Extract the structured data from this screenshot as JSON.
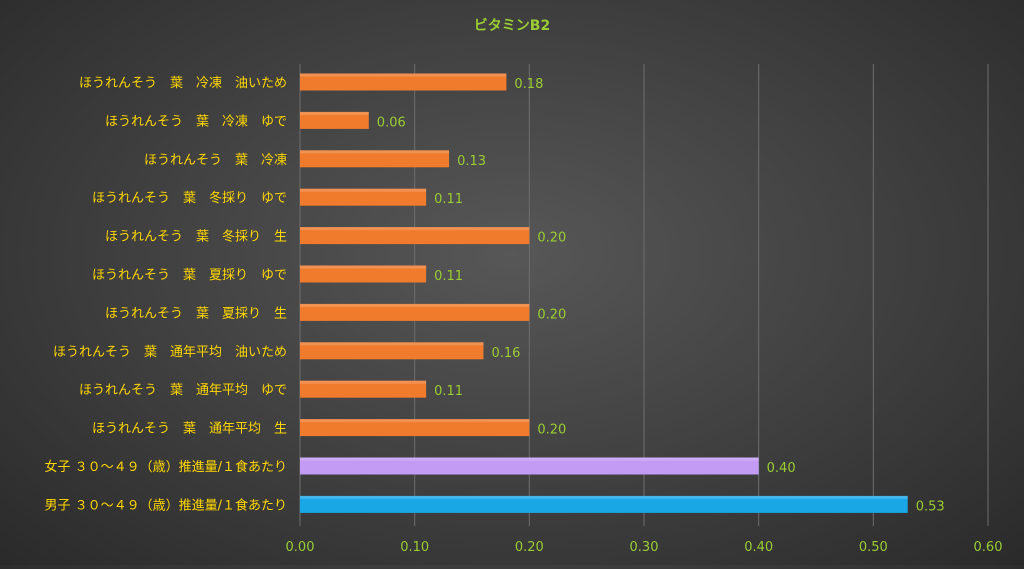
{
  "chart_data": {
    "type": "bar",
    "orientation": "horizontal",
    "title": "ビタミンB2",
    "xlabel": "",
    "ylabel": "",
    "xlim": [
      0,
      0.6
    ],
    "ticks": [
      "0.00",
      "0.10",
      "0.20",
      "0.30",
      "0.40",
      "0.50",
      "0.60"
    ],
    "grid": true,
    "categories": [
      "ほうれんそう　葉　冷凍　油いため",
      "ほうれんそう　葉　冷凍　ゆで",
      "ほうれんそう　葉　冷凍",
      "ほうれんそう　葉　冬採り　ゆで",
      "ほうれんそう　葉　冬採り　生",
      "ほうれんそう　葉　夏採り　ゆで",
      "ほうれんそう　葉　夏採り　生",
      "ほうれんそう　葉　通年平均　油いため",
      "ほうれんそう　葉　通年平均　ゆで",
      "ほうれんそう　葉　通年平均　生",
      "女子 ３０～４９（歳）推進量/１食あたり",
      "男子 ３０～４９（歳）推進量/１食あたり"
    ],
    "values": [
      0.18,
      0.06,
      0.13,
      0.11,
      0.2,
      0.11,
      0.2,
      0.16,
      0.11,
      0.2,
      0.4,
      0.53
    ],
    "value_labels": [
      "0.18",
      "0.06",
      "0.13",
      "0.11",
      "0.20",
      "0.11",
      "0.20",
      "0.16",
      "0.11",
      "0.20",
      "0.40",
      "0.53"
    ],
    "bar_colors": [
      "#f07b2c",
      "#f07b2c",
      "#f07b2c",
      "#f07b2c",
      "#f07b2c",
      "#f07b2c",
      "#f07b2c",
      "#f07b2c",
      "#f07b2c",
      "#f07b2c",
      "#c39bf5",
      "#1aa7e6"
    ],
    "colors": {
      "title": "#9acd32",
      "category_label": "#ffd700",
      "tick_label": "#9acd32",
      "data_label": "#9acd32",
      "gridline": "#6e6e6e"
    }
  }
}
